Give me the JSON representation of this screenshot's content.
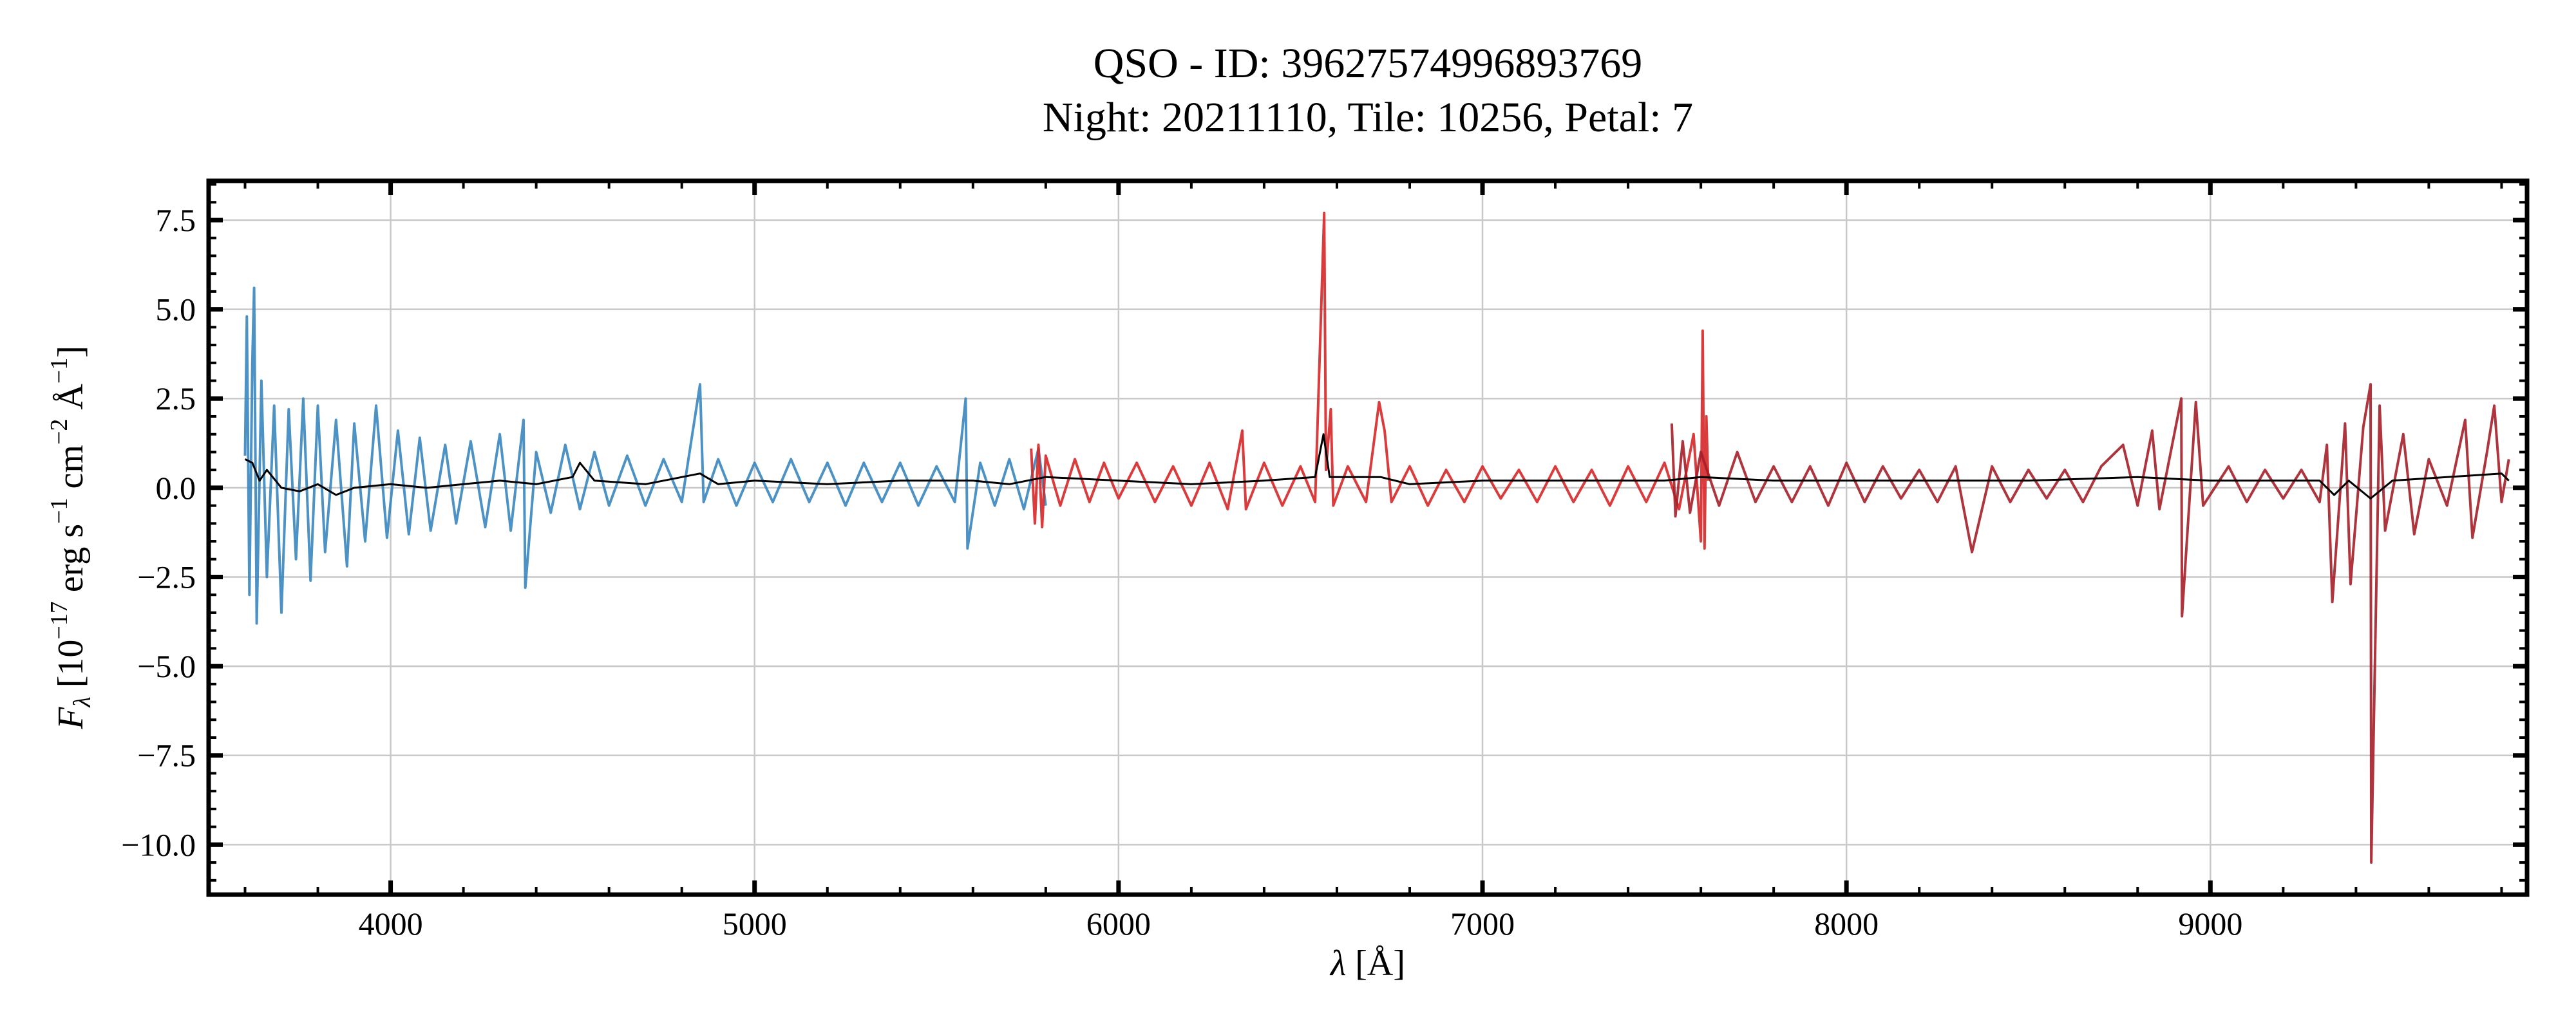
{
  "chart_data": {
    "type": "line",
    "title": "QSO - ID: 39627574996893769",
    "subtitle": "Night: 20211110, Tile: 10256, Petal: 7",
    "xlabel": "λ [Å]",
    "ylabel": "F_λ [10^-17 erg s^-1 cm^-2 Å^-1]",
    "xlim": [
      3500,
      9870
    ],
    "ylim": [
      -11.4,
      8.6
    ],
    "xticks": [
      4000,
      5000,
      6000,
      7000,
      8000,
      9000
    ],
    "xtick_labels": [
      "4000",
      "5000",
      "6000",
      "7000",
      "8000",
      "9000"
    ],
    "yticks": [
      7.5,
      5.0,
      2.5,
      0.0,
      -2.5,
      -5.0,
      -7.5,
      -10.0
    ],
    "ytick_labels": [
      "7.5",
      "5.0",
      "2.5",
      "0.0",
      "−2.5",
      "−5.0",
      "−7.5",
      "−10.0"
    ],
    "x_minor_step": 200,
    "y_minor_step": 0.5,
    "grid": true,
    "series": [
      {
        "color": "#3a86be",
        "points": [
          [
            3600,
            0.9
          ],
          [
            3605,
            4.8
          ],
          [
            3612,
            -3.0
          ],
          [
            3620,
            3.5
          ],
          [
            3625,
            5.6
          ],
          [
            3632,
            -3.8
          ],
          [
            3645,
            3.0
          ],
          [
            3660,
            -2.5
          ],
          [
            3680,
            2.3
          ],
          [
            3700,
            -3.5
          ],
          [
            3720,
            2.2
          ],
          [
            3740,
            -2.0
          ],
          [
            3760,
            2.5
          ],
          [
            3780,
            -2.6
          ],
          [
            3800,
            2.3
          ],
          [
            3820,
            -1.8
          ],
          [
            3850,
            1.9
          ],
          [
            3880,
            -2.2
          ],
          [
            3900,
            1.8
          ],
          [
            3930,
            -1.5
          ],
          [
            3960,
            2.3
          ],
          [
            3990,
            -1.4
          ],
          [
            4020,
            1.6
          ],
          [
            4050,
            -1.3
          ],
          [
            4080,
            1.4
          ],
          [
            4110,
            -1.2
          ],
          [
            4150,
            1.2
          ],
          [
            4180,
            -1.0
          ],
          [
            4220,
            1.3
          ],
          [
            4260,
            -1.1
          ],
          [
            4300,
            1.5
          ],
          [
            4330,
            -1.2
          ],
          [
            4365,
            1.9
          ],
          [
            4370,
            -2.8
          ],
          [
            4400,
            1.0
          ],
          [
            4440,
            -0.7
          ],
          [
            4480,
            1.2
          ],
          [
            4520,
            -0.6
          ],
          [
            4560,
            1.0
          ],
          [
            4600,
            -0.5
          ],
          [
            4650,
            0.9
          ],
          [
            4700,
            -0.5
          ],
          [
            4750,
            0.8
          ],
          [
            4800,
            -0.4
          ],
          [
            4850,
            2.9
          ],
          [
            4860,
            -0.4
          ],
          [
            4900,
            0.8
          ],
          [
            4950,
            -0.5
          ],
          [
            5000,
            0.7
          ],
          [
            5050,
            -0.4
          ],
          [
            5100,
            0.8
          ],
          [
            5150,
            -0.4
          ],
          [
            5200,
            0.7
          ],
          [
            5250,
            -0.5
          ],
          [
            5300,
            0.7
          ],
          [
            5350,
            -0.4
          ],
          [
            5400,
            0.7
          ],
          [
            5450,
            -0.5
          ],
          [
            5500,
            0.6
          ],
          [
            5550,
            -0.4
          ],
          [
            5580,
            2.5
          ],
          [
            5585,
            -1.7
          ],
          [
            5620,
            0.7
          ],
          [
            5660,
            -0.5
          ],
          [
            5700,
            0.8
          ],
          [
            5740,
            -0.6
          ],
          [
            5780,
            1.1
          ],
          [
            5800,
            -0.5
          ]
        ]
      },
      {
        "color": "#d62728",
        "points": [
          [
            5760,
            1.1
          ],
          [
            5770,
            -1.0
          ],
          [
            5780,
            1.2
          ],
          [
            5790,
            -1.1
          ],
          [
            5800,
            0.9
          ],
          [
            5840,
            -0.5
          ],
          [
            5880,
            0.8
          ],
          [
            5920,
            -0.4
          ],
          [
            5960,
            0.7
          ],
          [
            6000,
            -0.3
          ],
          [
            6050,
            0.7
          ],
          [
            6100,
            -0.4
          ],
          [
            6150,
            0.6
          ],
          [
            6200,
            -0.5
          ],
          [
            6250,
            0.7
          ],
          [
            6300,
            -0.6
          ],
          [
            6340,
            1.6
          ],
          [
            6350,
            -0.6
          ],
          [
            6400,
            0.7
          ],
          [
            6450,
            -0.5
          ],
          [
            6500,
            0.6
          ],
          [
            6540,
            -0.4
          ],
          [
            6565,
            7.7
          ],
          [
            6570,
            0.5
          ],
          [
            6583,
            2.2
          ],
          [
            6590,
            -0.5
          ],
          [
            6630,
            0.6
          ],
          [
            6680,
            -0.4
          ],
          [
            6716,
            2.4
          ],
          [
            6731,
            1.6
          ],
          [
            6750,
            -0.4
          ],
          [
            6800,
            0.6
          ],
          [
            6850,
            -0.5
          ],
          [
            6900,
            0.5
          ],
          [
            6950,
            -0.4
          ],
          [
            7000,
            0.6
          ],
          [
            7050,
            -0.3
          ],
          [
            7100,
            0.5
          ],
          [
            7150,
            -0.4
          ],
          [
            7200,
            0.6
          ],
          [
            7250,
            -0.4
          ],
          [
            7300,
            0.5
          ],
          [
            7350,
            -0.5
          ],
          [
            7400,
            0.6
          ],
          [
            7450,
            -0.4
          ],
          [
            7500,
            0.7
          ],
          [
            7540,
            -0.6
          ],
          [
            7580,
            1.5
          ],
          [
            7600,
            -1.5
          ],
          [
            7605,
            4.4
          ],
          [
            7610,
            -1.7
          ],
          [
            7615,
            2.0
          ],
          [
            7620,
            0.2
          ]
        ]
      },
      {
        "color": "#a51e28",
        "points": [
          [
            7520,
            1.8
          ],
          [
            7530,
            -0.8
          ],
          [
            7550,
            1.3
          ],
          [
            7570,
            -0.7
          ],
          [
            7600,
            1.0
          ],
          [
            7650,
            -0.5
          ],
          [
            7700,
            1.0
          ],
          [
            7750,
            -0.4
          ],
          [
            7800,
            0.6
          ],
          [
            7850,
            -0.4
          ],
          [
            7900,
            0.6
          ],
          [
            7950,
            -0.5
          ],
          [
            8000,
            0.7
          ],
          [
            8050,
            -0.4
          ],
          [
            8100,
            0.6
          ],
          [
            8150,
            -0.3
          ],
          [
            8200,
            0.5
          ],
          [
            8250,
            -0.4
          ],
          [
            8300,
            0.6
          ],
          [
            8345,
            -1.8
          ],
          [
            8400,
            0.6
          ],
          [
            8450,
            -0.4
          ],
          [
            8500,
            0.5
          ],
          [
            8550,
            -0.3
          ],
          [
            8600,
            0.5
          ],
          [
            8650,
            -0.4
          ],
          [
            8700,
            0.6
          ],
          [
            8760,
            1.2
          ],
          [
            8800,
            -0.5
          ],
          [
            8840,
            1.6
          ],
          [
            8860,
            -0.6
          ],
          [
            8920,
            2.5
          ],
          [
            8922,
            -3.6
          ],
          [
            8960,
            2.4
          ],
          [
            8980,
            -0.5
          ],
          [
            9050,
            0.6
          ],
          [
            9100,
            -0.4
          ],
          [
            9150,
            0.5
          ],
          [
            9200,
            -0.3
          ],
          [
            9250,
            0.5
          ],
          [
            9300,
            -0.4
          ],
          [
            9320,
            1.2
          ],
          [
            9335,
            -3.2
          ],
          [
            9370,
            1.8
          ],
          [
            9385,
            -2.7
          ],
          [
            9420,
            1.7
          ],
          [
            9440,
            2.9
          ],
          [
            9442,
            -10.5
          ],
          [
            9465,
            2.3
          ],
          [
            9480,
            -1.2
          ],
          [
            9530,
            1.5
          ],
          [
            9560,
            -1.3
          ],
          [
            9600,
            0.8
          ],
          [
            9650,
            -0.5
          ],
          [
            9700,
            1.9
          ],
          [
            9720,
            -1.4
          ],
          [
            9760,
            1.0
          ],
          [
            9780,
            2.3
          ],
          [
            9800,
            -0.4
          ],
          [
            9820,
            0.8
          ]
        ]
      },
      {
        "color": "#000000",
        "points": [
          [
            3600,
            0.8
          ],
          [
            3620,
            0.7
          ],
          [
            3640,
            0.2
          ],
          [
            3660,
            0.5
          ],
          [
            3700,
            0.0
          ],
          [
            3750,
            -0.1
          ],
          [
            3800,
            0.1
          ],
          [
            3850,
            -0.2
          ],
          [
            3900,
            0.0
          ],
          [
            4000,
            0.1
          ],
          [
            4100,
            0.0
          ],
          [
            4200,
            0.1
          ],
          [
            4300,
            0.2
          ],
          [
            4400,
            0.1
          ],
          [
            4500,
            0.3
          ],
          [
            4520,
            0.7
          ],
          [
            4560,
            0.2
          ],
          [
            4700,
            0.1
          ],
          [
            4850,
            0.4
          ],
          [
            4900,
            0.1
          ],
          [
            5000,
            0.2
          ],
          [
            5200,
            0.1
          ],
          [
            5400,
            0.2
          ],
          [
            5600,
            0.2
          ],
          [
            5700,
            0.1
          ],
          [
            5800,
            0.3
          ],
          [
            6000,
            0.2
          ],
          [
            6200,
            0.1
          ],
          [
            6400,
            0.2
          ],
          [
            6540,
            0.3
          ],
          [
            6563,
            1.5
          ],
          [
            6580,
            0.3
          ],
          [
            6720,
            0.3
          ],
          [
            6800,
            0.1
          ],
          [
            7000,
            0.2
          ],
          [
            7200,
            0.2
          ],
          [
            7500,
            0.2
          ],
          [
            7600,
            0.3
          ],
          [
            7800,
            0.2
          ],
          [
            8000,
            0.2
          ],
          [
            8500,
            0.2
          ],
          [
            8800,
            0.3
          ],
          [
            9000,
            0.2
          ],
          [
            9300,
            0.2
          ],
          [
            9340,
            -0.2
          ],
          [
            9380,
            0.2
          ],
          [
            9440,
            -0.3
          ],
          [
            9500,
            0.2
          ],
          [
            9800,
            0.4
          ],
          [
            9820,
            0.2
          ]
        ]
      }
    ]
  }
}
